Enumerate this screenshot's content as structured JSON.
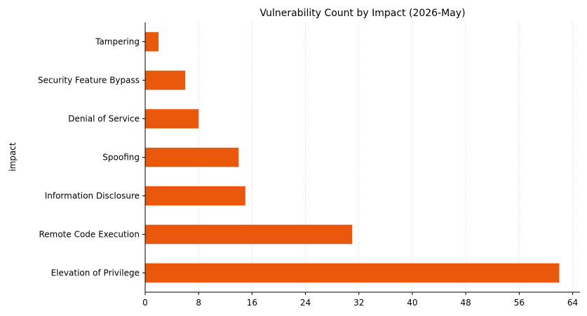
{
  "chart_data": {
    "type": "bar",
    "orientation": "horizontal",
    "title": "Vulnerability Count by Impact (2026-May)",
    "xlabel": "",
    "ylabel": "impact",
    "categories": [
      "Elevation of Privilege",
      "Remote Code Execution",
      "Information Disclosure",
      "Spoofing",
      "Denial of Service",
      "Security Feature Bypass",
      "Tampering"
    ],
    "values": [
      62,
      31,
      15,
      14,
      8,
      6,
      2
    ],
    "xlim": [
      0,
      62
    ],
    "xticks": [
      0,
      8,
      16,
      24,
      32,
      40,
      48,
      56,
      64
    ],
    "grid": "x-dotted",
    "legend": "none",
    "bar_color": "#ea580c",
    "grid_color": "#cccccc"
  }
}
